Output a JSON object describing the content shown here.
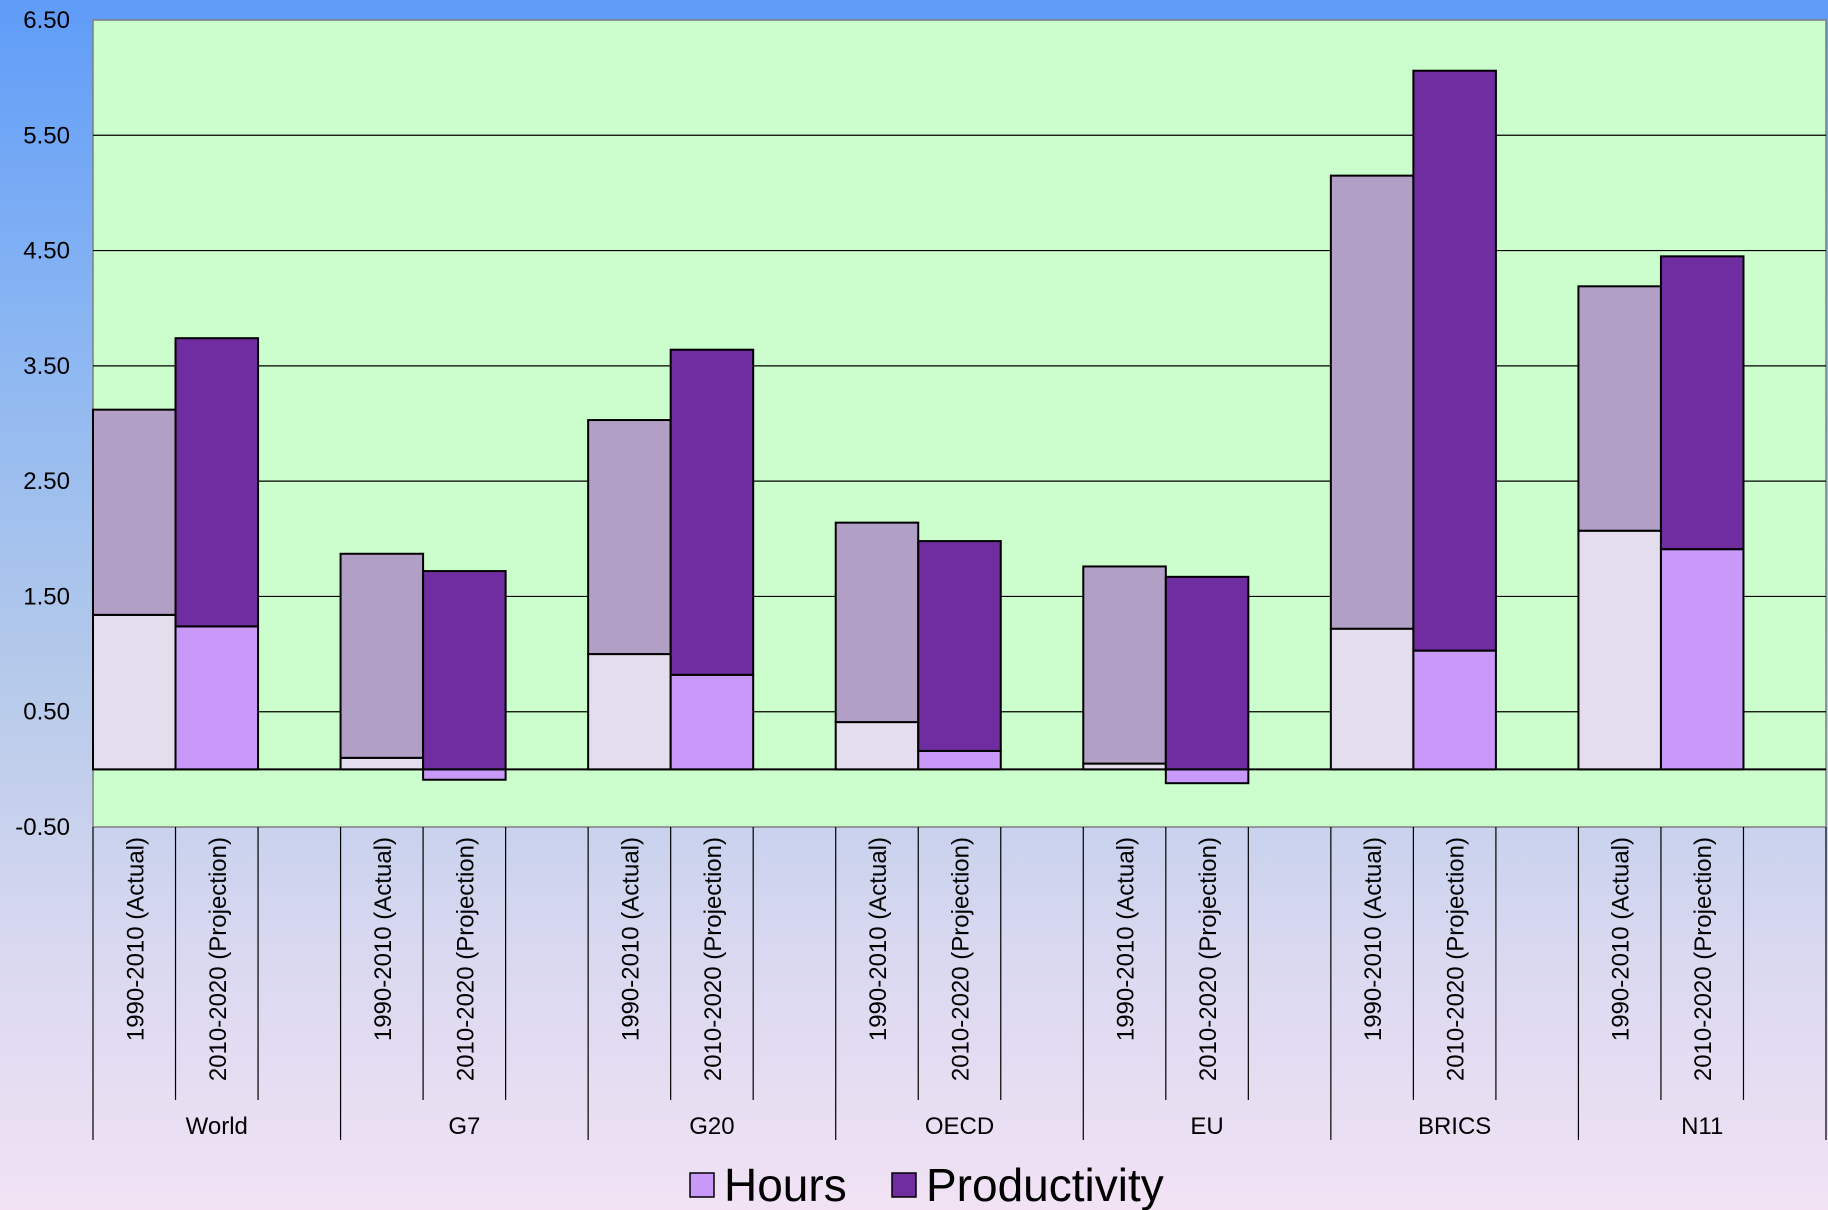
{
  "chart_data": {
    "type": "bar",
    "stacked": true,
    "title": "",
    "xlabel": "",
    "ylabel": "",
    "ylim": [
      -0.5,
      6.5
    ],
    "yticks": [
      "6.50",
      "5.50",
      "4.50",
      "3.50",
      "2.50",
      "1.50",
      "0.50",
      "-0.50"
    ],
    "grid": true,
    "legend_position": "bottom",
    "groups": [
      {
        "name": "World",
        "bars": [
          {
            "label": "1990-2010 (Actual)",
            "hours": 1.34,
            "productivity": 1.78
          },
          {
            "label": "2010-2020 (Projection)",
            "hours": 1.24,
            "productivity": 2.5
          }
        ]
      },
      {
        "name": "G7",
        "bars": [
          {
            "label": "1990-2010 (Actual)",
            "hours": 0.1,
            "productivity": 1.77
          },
          {
            "label": "2010-2020 (Projection)",
            "hours": -0.09,
            "productivity": 1.72
          }
        ]
      },
      {
        "name": "G20",
        "bars": [
          {
            "label": "1990-2010 (Actual)",
            "hours": 1.0,
            "productivity": 2.03
          },
          {
            "label": "2010-2020 (Projection)",
            "hours": 0.82,
            "productivity": 2.82
          }
        ]
      },
      {
        "name": "OECD",
        "bars": [
          {
            "label": "1990-2010 (Actual)",
            "hours": 0.41,
            "productivity": 1.73
          },
          {
            "label": "2010-2020 (Projection)",
            "hours": 0.16,
            "productivity": 1.82
          }
        ]
      },
      {
        "name": "EU",
        "bars": [
          {
            "label": "1990-2010 (Actual)",
            "hours": 0.05,
            "productivity": 1.71
          },
          {
            "label": "2010-2020 (Projection)",
            "hours": -0.12,
            "productivity": 1.67
          }
        ]
      },
      {
        "name": "BRICS",
        "bars": [
          {
            "label": "1990-2010 (Actual)",
            "hours": 1.22,
            "productivity": 3.93
          },
          {
            "label": "2010-2020 (Projection)",
            "hours": 1.03,
            "productivity": 5.03
          }
        ]
      },
      {
        "name": "N11",
        "bars": [
          {
            "label": "1990-2010 (Actual)",
            "hours": 2.07,
            "productivity": 2.12
          },
          {
            "label": "2010-2020 (Projection)",
            "hours": 1.91,
            "productivity": 2.54
          }
        ]
      }
    ],
    "series": [
      {
        "name": "Hours",
        "key": "hours",
        "color_actual": "#e4dded",
        "color_projection": "#c899f8"
      },
      {
        "name": "Productivity",
        "key": "productivity",
        "color_actual": "#b19fc6",
        "color_projection": "#6f2d9f"
      }
    ]
  },
  "colors": {
    "plot_background": "#ccfdcc",
    "gridline": "#000000"
  }
}
